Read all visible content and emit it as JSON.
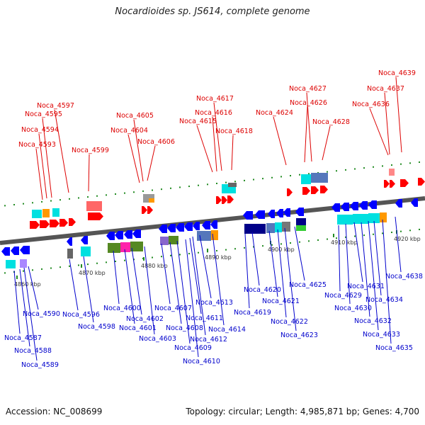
{
  "header": {
    "title": "Nocardioides sp. JS614, complete genome"
  },
  "footer": {
    "accession": "Accession: NC_008699",
    "summary": "Topology: circular; Length: 4,985,871 bp; Genes: 4,700"
  },
  "colors": {
    "top_label": "#dd0000",
    "bottom_label": "#0000cc",
    "backbone": "#555555",
    "forward_gene": "#ff0000",
    "reverse_gene": "#0000ff",
    "tick": "#228b22"
  },
  "scale_labels": [
    "4860 kbp",
    "4870 kbp",
    "4880 kbp",
    "4890 kbp",
    "4900 kbp",
    "4910 kbp",
    "4920 kbp"
  ],
  "top_genes": [
    "Noca_4593",
    "Noca_4594",
    "Noca_4595",
    "Noca_4597",
    "Noca_4599",
    "Noca_4604",
    "Noca_4605",
    "Noca_4606",
    "Noca_4615",
    "Noca_4616",
    "Noca_4617",
    "Noca_4618",
    "Noca_4624",
    "Noca_4626",
    "Noca_4627",
    "Noca_4628",
    "Noca_4636",
    "Noca_4637",
    "Noca_4639"
  ],
  "bottom_genes": [
    "Noca_4587",
    "Noca_4588",
    "Noca_4589",
    "Noca_4590",
    "Noca_4596",
    "Noca_4598",
    "Noca_4600",
    "Noca_4601",
    "Noca_4602",
    "Noca_4603",
    "Noca_4607",
    "Noca_4608",
    "Noca_4609",
    "Noca_4610",
    "Noca_4611",
    "Noca_4612",
    "Noca_4613",
    "Noca_4614",
    "Noca_4619",
    "Noca_4620",
    "Noca_4621",
    "Noca_4622",
    "Noca_4623",
    "Noca_4625",
    "Noca_4629",
    "Noca_4630",
    "Noca_4631",
    "Noca_4632",
    "Noca_4633",
    "Noca_4634",
    "Noca_4635",
    "Noca_4638"
  ]
}
